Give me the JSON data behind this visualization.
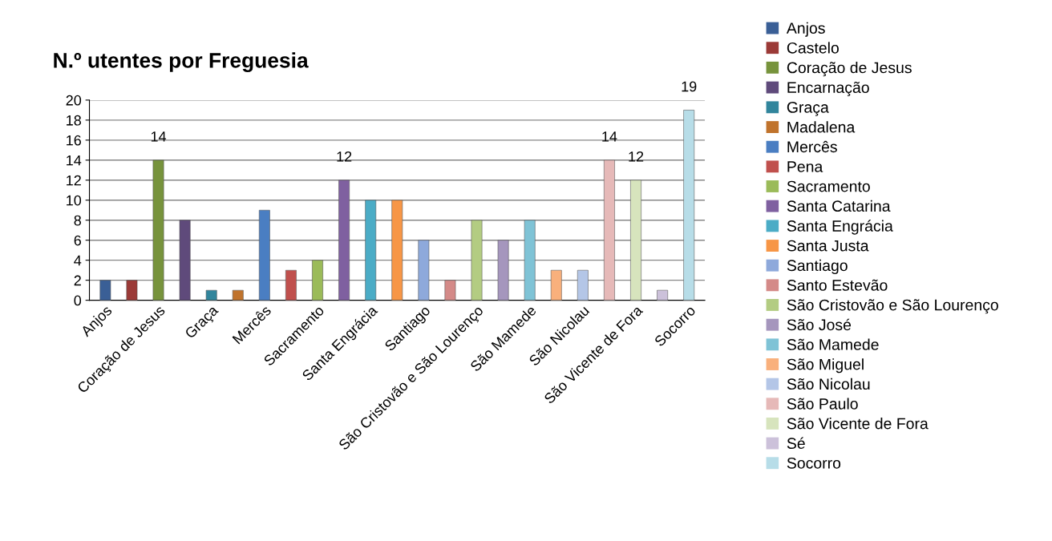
{
  "chart_data": {
    "type": "bar",
    "title": "N.º utentes por Freguesia",
    "categories": [
      "Anjos",
      null,
      "Coração de Jesus",
      null,
      "Graça",
      null,
      "Mercês",
      null,
      "Sacramento",
      null,
      "Santa Engrácia",
      null,
      "Santiago",
      null,
      "São Cristovão e São Lourenço",
      null,
      "São Mamede",
      null,
      "São Nicolau",
      null,
      "São Vicente de Fora",
      null,
      "Socorro"
    ],
    "series": [
      {
        "name": "Anjos",
        "color": "#3a5f96",
        "values": [
          2,
          null,
          null,
          null,
          null,
          null,
          null,
          null,
          null,
          null,
          null,
          null,
          null,
          null,
          null,
          null,
          null,
          null,
          null,
          null,
          null,
          null,
          null
        ]
      },
      {
        "name": "Castelo",
        "color": "#9b3a37",
        "values": [
          null,
          2,
          null,
          null,
          null,
          null,
          null,
          null,
          null,
          null,
          null,
          null,
          null,
          null,
          null,
          null,
          null,
          null,
          null,
          null,
          null,
          null,
          null
        ]
      },
      {
        "name": "Coração de Jesus",
        "color": "#77933c",
        "values": [
          null,
          null,
          14,
          null,
          null,
          null,
          null,
          null,
          null,
          null,
          null,
          null,
          null,
          null,
          null,
          null,
          null,
          null,
          null,
          null,
          null,
          null,
          null
        ],
        "value_labels": [
          null,
          null,
          "14",
          null,
          null,
          null,
          null,
          null,
          null,
          null,
          null,
          null,
          null,
          null,
          null,
          null,
          null,
          null,
          null,
          null,
          null,
          null,
          null
        ]
      },
      {
        "name": "Encarnação",
        "color": "#5f4a7b",
        "values": [
          null,
          null,
          null,
          8,
          null,
          null,
          null,
          null,
          null,
          null,
          null,
          null,
          null,
          null,
          null,
          null,
          null,
          null,
          null,
          null,
          null,
          null,
          null
        ]
      },
      {
        "name": "Graça",
        "color": "#31859c",
        "values": [
          null,
          null,
          null,
          null,
          1,
          null,
          null,
          null,
          null,
          null,
          null,
          null,
          null,
          null,
          null,
          null,
          null,
          null,
          null,
          null,
          null,
          null,
          null
        ]
      },
      {
        "name": "Madalena",
        "color": "#c0732c",
        "values": [
          null,
          null,
          null,
          null,
          null,
          1,
          null,
          null,
          null,
          null,
          null,
          null,
          null,
          null,
          null,
          null,
          null,
          null,
          null,
          null,
          null,
          null,
          null
        ]
      },
      {
        "name": "Mercês",
        "color": "#4a7ec2",
        "values": [
          null,
          null,
          null,
          null,
          null,
          null,
          9,
          null,
          null,
          null,
          null,
          null,
          null,
          null,
          null,
          null,
          null,
          null,
          null,
          null,
          null,
          null,
          null
        ]
      },
      {
        "name": "Pena",
        "color": "#c0504d",
        "values": [
          null,
          null,
          null,
          null,
          null,
          null,
          null,
          3,
          null,
          null,
          null,
          null,
          null,
          null,
          null,
          null,
          null,
          null,
          null,
          null,
          null,
          null,
          null
        ]
      },
      {
        "name": "Sacramento",
        "color": "#9bbb59",
        "values": [
          null,
          null,
          null,
          null,
          null,
          null,
          null,
          null,
          4,
          null,
          null,
          null,
          null,
          null,
          null,
          null,
          null,
          null,
          null,
          null,
          null,
          null,
          null
        ]
      },
      {
        "name": "Santa Catarina",
        "color": "#7f60a0",
        "values": [
          null,
          null,
          null,
          null,
          null,
          null,
          null,
          null,
          null,
          12,
          null,
          null,
          null,
          null,
          null,
          null,
          null,
          null,
          null,
          null,
          null,
          null,
          null
        ],
        "value_labels": [
          null,
          null,
          null,
          null,
          null,
          null,
          null,
          null,
          null,
          "12",
          null,
          null,
          null,
          null,
          null,
          null,
          null,
          null,
          null,
          null,
          null,
          null,
          null
        ]
      },
      {
        "name": "Santa Engrácia",
        "color": "#4bacc6",
        "values": [
          null,
          null,
          null,
          null,
          null,
          null,
          null,
          null,
          null,
          null,
          10,
          null,
          null,
          null,
          null,
          null,
          null,
          null,
          null,
          null,
          null,
          null,
          null
        ]
      },
      {
        "name": "Santa Justa",
        "color": "#f79646",
        "values": [
          null,
          null,
          null,
          null,
          null,
          null,
          null,
          null,
          null,
          null,
          null,
          10,
          null,
          null,
          null,
          null,
          null,
          null,
          null,
          null,
          null,
          null,
          null
        ]
      },
      {
        "name": "Santiago",
        "color": "#8ea9db",
        "values": [
          null,
          null,
          null,
          null,
          null,
          null,
          null,
          null,
          null,
          null,
          null,
          null,
          6,
          null,
          null,
          null,
          null,
          null,
          null,
          null,
          null,
          null,
          null
        ]
      },
      {
        "name": "Santo Estevão",
        "color": "#d48a88",
        "values": [
          null,
          null,
          null,
          null,
          null,
          null,
          null,
          null,
          null,
          null,
          null,
          null,
          null,
          2,
          null,
          null,
          null,
          null,
          null,
          null,
          null,
          null,
          null
        ]
      },
      {
        "name": "São Cristovão e São Lourenço",
        "color": "#b3cc82",
        "values": [
          null,
          null,
          null,
          null,
          null,
          null,
          null,
          null,
          null,
          null,
          null,
          null,
          null,
          null,
          8,
          null,
          null,
          null,
          null,
          null,
          null,
          null,
          null
        ]
      },
      {
        "name": "São José",
        "color": "#a596bd",
        "values": [
          null,
          null,
          null,
          null,
          null,
          null,
          null,
          null,
          null,
          null,
          null,
          null,
          null,
          null,
          null,
          6,
          null,
          null,
          null,
          null,
          null,
          null,
          null
        ]
      },
      {
        "name": "São Mamede",
        "color": "#7fc3d6",
        "values": [
          null,
          null,
          null,
          null,
          null,
          null,
          null,
          null,
          null,
          null,
          null,
          null,
          null,
          null,
          null,
          null,
          8,
          null,
          null,
          null,
          null,
          null,
          null
        ]
      },
      {
        "name": "São Miguel",
        "color": "#f9b07c",
        "values": [
          null,
          null,
          null,
          null,
          null,
          null,
          null,
          null,
          null,
          null,
          null,
          null,
          null,
          null,
          null,
          null,
          null,
          3,
          null,
          null,
          null,
          null,
          null
        ]
      },
      {
        "name": "São Nicolau",
        "color": "#b4c6e7",
        "values": [
          null,
          null,
          null,
          null,
          null,
          null,
          null,
          null,
          null,
          null,
          null,
          null,
          null,
          null,
          null,
          null,
          null,
          null,
          3,
          null,
          null,
          null,
          null
        ]
      },
      {
        "name": "São Paulo",
        "color": "#e6b9b8",
        "values": [
          null,
          null,
          null,
          null,
          null,
          null,
          null,
          null,
          null,
          null,
          null,
          null,
          null,
          null,
          null,
          null,
          null,
          null,
          null,
          14,
          null,
          null,
          null
        ],
        "value_labels": [
          null,
          null,
          null,
          null,
          null,
          null,
          null,
          null,
          null,
          null,
          null,
          null,
          null,
          null,
          null,
          null,
          null,
          null,
          null,
          "14",
          null,
          null,
          null
        ]
      },
      {
        "name": "São Vicente de Fora",
        "color": "#d7e4bd",
        "values": [
          null,
          null,
          null,
          null,
          null,
          null,
          null,
          null,
          null,
          null,
          null,
          null,
          null,
          null,
          null,
          null,
          null,
          null,
          null,
          null,
          12,
          null,
          null
        ],
        "value_labels": [
          null,
          null,
          null,
          null,
          null,
          null,
          null,
          null,
          null,
          null,
          null,
          null,
          null,
          null,
          null,
          null,
          null,
          null,
          null,
          null,
          "12",
          null,
          null
        ]
      },
      {
        "name": "Sé",
        "color": "#ccc1da",
        "values": [
          null,
          null,
          null,
          null,
          null,
          null,
          null,
          null,
          null,
          null,
          null,
          null,
          null,
          null,
          null,
          null,
          null,
          null,
          null,
          null,
          null,
          1,
          null
        ]
      },
      {
        "name": "Socorro",
        "color": "#b7dde8",
        "values": [
          null,
          null,
          null,
          null,
          null,
          null,
          null,
          null,
          null,
          null,
          null,
          null,
          null,
          null,
          null,
          null,
          null,
          null,
          null,
          null,
          null,
          null,
          19
        ],
        "value_labels": [
          null,
          null,
          null,
          null,
          null,
          null,
          null,
          null,
          null,
          null,
          null,
          null,
          null,
          null,
          null,
          null,
          null,
          null,
          null,
          null,
          null,
          null,
          "19"
        ]
      }
    ],
    "ylim": [
      0,
      20
    ],
    "yticks": [
      0,
      2,
      4,
      6,
      8,
      10,
      12,
      14,
      16,
      18,
      20
    ],
    "grid": "y",
    "legend": "right"
  }
}
